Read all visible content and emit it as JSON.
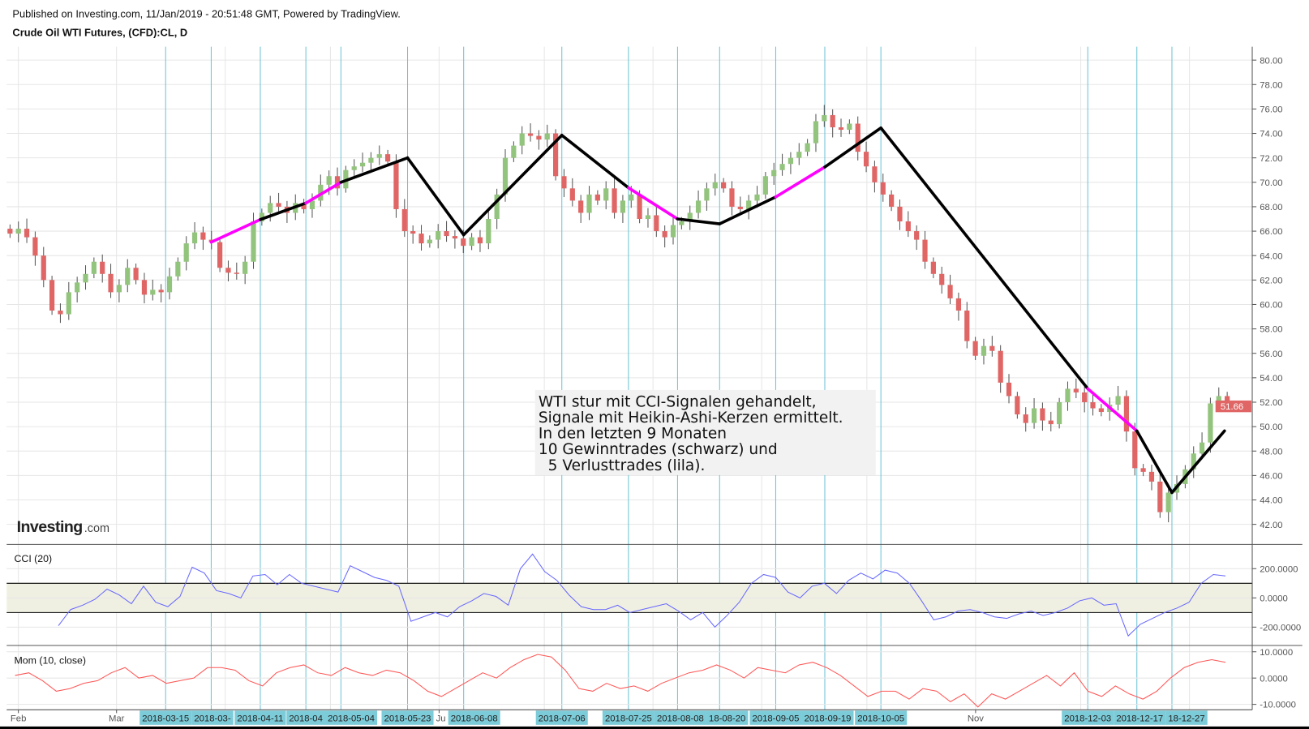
{
  "header": {
    "published": "Published on Investing.com, 11/Jan/2019 - 20:51:48 GMT, Powered by TradingView.",
    "title": "Crude Oil WTI Futures, (CFD):CL, D"
  },
  "logo": {
    "brand": "Investing",
    "suffix": ".com"
  },
  "annotation": {
    "lines": [
      "WTI stur mit CCI-Signalen gehandelt,",
      "Signale mit Heikin-Ashi-Kerzen ermittelt.",
      "In den letzten 9 Monaten",
      "10 Gewinntrades (schwarz) und",
      "  5 Verlusttrades (lila)."
    ]
  },
  "colors": {
    "up": "#93c47d",
    "down": "#e06666",
    "wick": "#555555",
    "signal_line": "#6cc3d5",
    "signal_label_bg": "#7ccbd8",
    "win_trade": "#000000",
    "loss_trade": "#ff00ff",
    "cci": "#6666ff",
    "cci_band": "#f0f0e2",
    "mom": "#ff5555",
    "last_price_bg": "#e06666"
  },
  "chart_data": [
    {
      "type": "candlestick",
      "name": "price",
      "ylim": [
        41,
        81
      ],
      "yticks": [
        "80.00",
        "78.00",
        "76.00",
        "74.00",
        "72.00",
        "70.00",
        "68.00",
        "66.00",
        "64.00",
        "62.00",
        "60.00",
        "58.00",
        "56.00",
        "54.00",
        "52.00",
        "50.00",
        "48.00",
        "46.00",
        "44.00",
        "42.00"
      ],
      "last_price": "51.66",
      "close": [
        65.8,
        66.2,
        65.5,
        64.0,
        62.0,
        59.5,
        59.2,
        61.0,
        61.8,
        62.5,
        63.5,
        62.5,
        61.0,
        61.6,
        63.0,
        62.0,
        60.8,
        61.2,
        61.0,
        62.3,
        63.5,
        65.0,
        65.9,
        65.3,
        65.1,
        63.0,
        62.6,
        62.5,
        63.5,
        66.8,
        67.5,
        68.3,
        68.0,
        67.5,
        68.3,
        67.8,
        68.5,
        69.8,
        70.5,
        69.5,
        71.0,
        71.3,
        71.6,
        72.0,
        72.3,
        71.7,
        67.8,
        66.0,
        65.8,
        65.0,
        65.3,
        66.0,
        65.6,
        65.4,
        64.8,
        65.5,
        65.0,
        67.0,
        69.0,
        72.0,
        73.0,
        74.0,
        73.8,
        73.5,
        74.0,
        70.5,
        69.5,
        68.5,
        67.5,
        69.0,
        68.5,
        69.5,
        67.5,
        68.5,
        69.0,
        67.0,
        67.3,
        66.0,
        65.5,
        66.5,
        66.8,
        67.5,
        68.5,
        69.5,
        70.0,
        69.5,
        68.0,
        67.8,
        68.5,
        69.0,
        70.5,
        71.0,
        71.5,
        72.0,
        72.5,
        73.2,
        75.0,
        75.5,
        74.5,
        74.3,
        74.8,
        72.5,
        71.3,
        70.0,
        69.0,
        68.0,
        66.8,
        66.0,
        65.3,
        63.5,
        62.5,
        61.6,
        60.5,
        59.5,
        57.0,
        55.8,
        56.6,
        56.2,
        53.6,
        52.5,
        51.0,
        50.3,
        51.5,
        50.5,
        50.2,
        52.0,
        53.1,
        52.8,
        52.0,
        51.5,
        51.2,
        51.8,
        52.5,
        49.6,
        46.6,
        46.3,
        45.5,
        43.0,
        44.6,
        45.3,
        46.5,
        47.8,
        48.7,
        51.9,
        52.5,
        51.66
      ]
    },
    {
      "type": "line",
      "name": "trades",
      "points": [
        [
          "2018-03-28",
          65.1
        ],
        [
          "2018-04-11",
          66.95
        ],
        [
          "2018-04-24",
          68.3
        ],
        [
          "2018-05-04",
          70.0
        ],
        [
          "2018-05-23",
          72.0
        ],
        [
          "2018-06-08",
          65.7
        ],
        [
          "2018-07-06",
          73.85
        ],
        [
          "2018-07-25",
          69.55
        ],
        [
          "2018-08-08",
          67.0
        ],
        [
          "2018-08-20",
          66.6
        ],
        [
          "2018-09-05",
          68.8
        ],
        [
          "2018-09-19",
          71.25
        ],
        [
          "2018-10-05",
          74.45
        ],
        [
          "2018-12-03",
          53.1
        ],
        [
          "2018-12-17",
          49.65
        ],
        [
          "2018-12-27",
          44.6
        ],
        [
          "2019-01-11",
          49.65
        ]
      ],
      "segment_result": [
        "loss",
        "win",
        "loss",
        "win",
        "win",
        "win",
        "win",
        "loss",
        "win",
        "win",
        "loss",
        "win",
        "win",
        "loss",
        "win",
        "win"
      ]
    },
    {
      "type": "vlines",
      "name": "signals",
      "dates": [
        "2018-03-15",
        "2018-03-28",
        "2018-04-11",
        "2018-04-24",
        "2018-05-04",
        "2018-05-23",
        "2018-06-08",
        "2018-07-06",
        "2018-07-25",
        "2018-08-08",
        "2018-08-20",
        "2018-09-05",
        "2018-09-19",
        "2018-10-05",
        "2018-12-03",
        "2018-12-17",
        "2018-12-27"
      ],
      "labels": [
        "2018-03-15",
        "2018-03-",
        "2018-04-11",
        "2018-04",
        "2018-05-04",
        "2018-05-23",
        "2018-06-08",
        "2018-07-06",
        "2018-07-25",
        "2018-08-08",
        "18-08-20",
        "2018-09-05",
        "2018-09-19",
        "2018-10-05",
        "2018-12-03",
        "2018-12-17",
        "18-12-27"
      ]
    },
    {
      "type": "line",
      "name": "CCI (20)",
      "title": "CCI (20)",
      "ylim": [
        -300,
        350
      ],
      "bands": [
        -100,
        100
      ],
      "yticks": [
        "200.0000",
        "0.0000",
        "-200.0000"
      ],
      "values": [
        -190,
        -80,
        -50,
        -10,
        60,
        20,
        -40,
        80,
        -30,
        -60,
        10,
        210,
        170,
        50,
        30,
        0,
        150,
        160,
        90,
        160,
        100,
        80,
        60,
        40,
        220,
        180,
        140,
        120,
        80,
        -160,
        -130,
        -100,
        -130,
        -60,
        -20,
        30,
        10,
        -50,
        200,
        300,
        180,
        120,
        20,
        -60,
        -80,
        -80,
        -50,
        -100,
        -80,
        -60,
        -40,
        -90,
        -150,
        -100,
        -200,
        -120,
        -30,
        100,
        160,
        140,
        40,
        0,
        80,
        100,
        30,
        120,
        170,
        130,
        190,
        170,
        100,
        -20,
        -150,
        -130,
        -90,
        -80,
        -100,
        -130,
        -140,
        -110,
        -90,
        -120,
        -100,
        -70,
        -20,
        0,
        -50,
        -40,
        -260,
        -180,
        -140,
        -100,
        -70,
        -30,
        100,
        160,
        150
      ]
    },
    {
      "type": "line",
      "name": "Mom (10, close)",
      "title": "Mom (10, close)",
      "ylim": [
        -11,
        11
      ],
      "yticks": [
        "10.0000",
        "0.0000",
        "-10.0000"
      ],
      "values": [
        1,
        2,
        -1,
        -5,
        -4,
        -2,
        -1,
        2,
        4,
        0,
        1,
        -2,
        -1,
        0,
        4,
        4,
        3,
        -1,
        -3,
        2,
        4,
        5,
        2,
        1,
        4,
        2,
        1,
        3,
        2,
        -1,
        -5,
        -7,
        -4,
        -1,
        2,
        0,
        4,
        7,
        9,
        8,
        3,
        -4,
        -5,
        -2,
        -4,
        -3,
        -5,
        -2,
        0,
        2,
        3,
        5,
        3,
        0,
        4,
        3,
        2,
        5,
        6,
        4,
        1,
        -3,
        -7,
        -5,
        -5,
        -8,
        -4,
        -5,
        -9,
        -6,
        -11,
        -6,
        -8,
        -5,
        -2,
        1,
        -3,
        2,
        -5,
        -7,
        -3,
        -6,
        -8,
        -5,
        0,
        4,
        6,
        7,
        6
      ]
    }
  ],
  "xaxis": {
    "months": [
      [
        "2018-02-01",
        "Feb"
      ],
      [
        "2018-03-01",
        "Mar"
      ],
      [
        "2018-06-01",
        "Ju"
      ],
      [
        "2018-11-01",
        "Nov"
      ]
    ]
  }
}
